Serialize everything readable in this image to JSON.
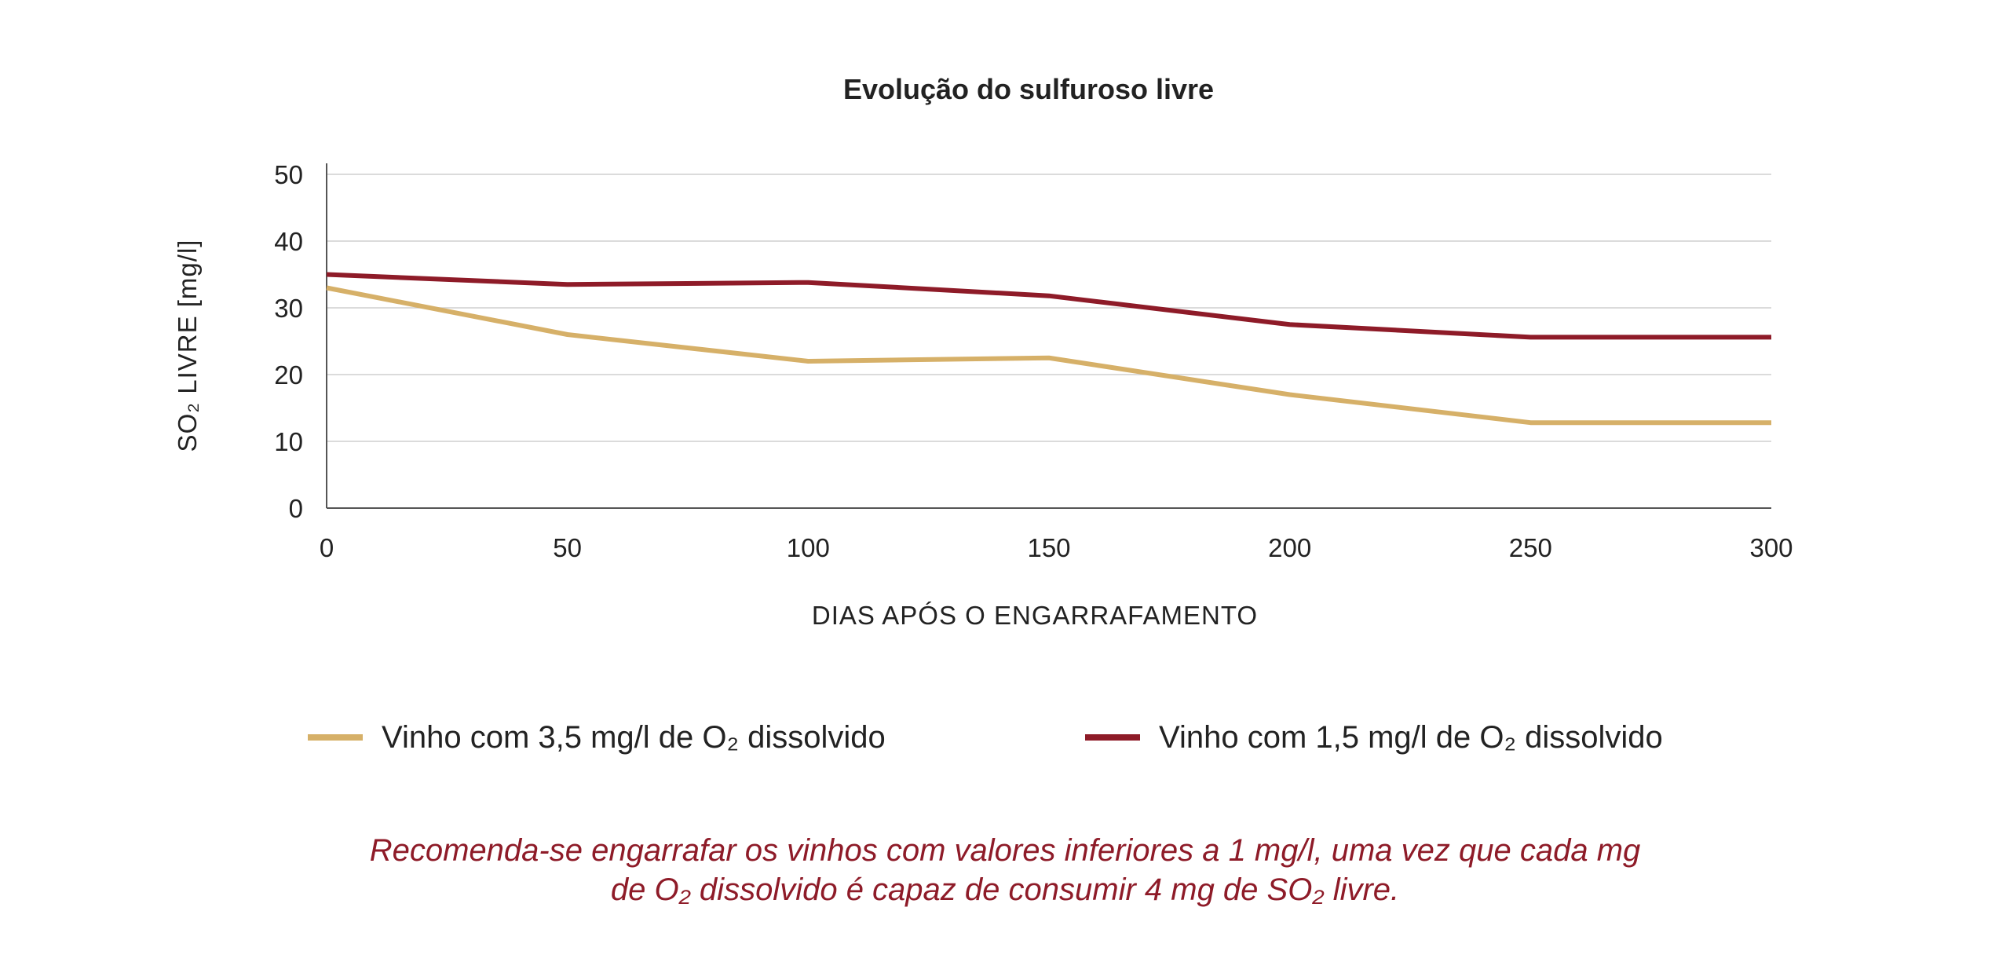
{
  "chart_data": {
    "type": "line",
    "title": "Evolução do sulfuroso livre",
    "xlabel": "DIAS APÓS O ENGARRAFAMENTO",
    "ylabel": "SO₂ LIVRE [mg/l]",
    "xlim": [
      0,
      300
    ],
    "ylim": [
      0,
      50
    ],
    "x_ticks": [
      0,
      50,
      100,
      150,
      200,
      250,
      300
    ],
    "y_ticks": [
      0,
      10,
      20,
      30,
      40,
      50
    ],
    "grid": true,
    "legend_position": "bottom",
    "series": [
      {
        "name": "Vinho com 3,5 mg/l de O₂ dissolvido",
        "color": "#d6b068",
        "x": [
          0,
          50,
          100,
          150,
          200,
          250,
          300
        ],
        "values": [
          33,
          26,
          22,
          22.5,
          17,
          12.8,
          12.8
        ]
      },
      {
        "name": "Vinho com 1,5 mg/l de O₂ dissolvido",
        "color": "#8e1b28",
        "x": [
          0,
          50,
          100,
          150,
          200,
          250,
          300
        ],
        "values": [
          35,
          33.5,
          33.8,
          31.8,
          27.5,
          25.6,
          25.6
        ]
      }
    ]
  },
  "note": {
    "line1": "Recomenda-se engarrafar os vinhos com valores inferiores a 1 mg/l, uma vez que cada mg",
    "line2": "de O₂ dissolvido é capaz de consumir 4 mg de SO₂ livre."
  }
}
